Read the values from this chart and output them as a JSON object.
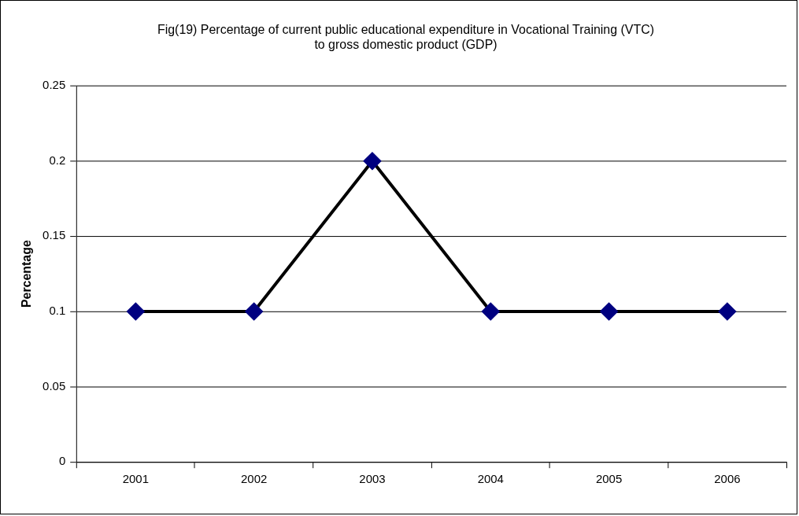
{
  "chart_data": {
    "type": "line",
    "title": "Fig(19) Percentage of current public educational expenditure in Vocational Training (VTC) to gross domestic product (GDP)",
    "ylabel": "Percentage",
    "categories": [
      "2001",
      "2002",
      "2003",
      "2004",
      "2005",
      "2006"
    ],
    "series": [
      {
        "color": "#000000",
        "colors": [
          "#000080",
          "#000080",
          "#000080",
          "#000080",
          "#000080",
          "#000080"
        ],
        "values": [
          0.1,
          0.1,
          0.2,
          0.1,
          0.1,
          0.1
        ]
      }
    ],
    "ylim": [
      0,
      0.25
    ],
    "yticks": [
      0,
      0.05,
      0.1,
      0.15,
      0.2,
      0.25
    ],
    "grid": "y",
    "legend": false,
    "marker": "diamond",
    "line_style": "solid"
  }
}
